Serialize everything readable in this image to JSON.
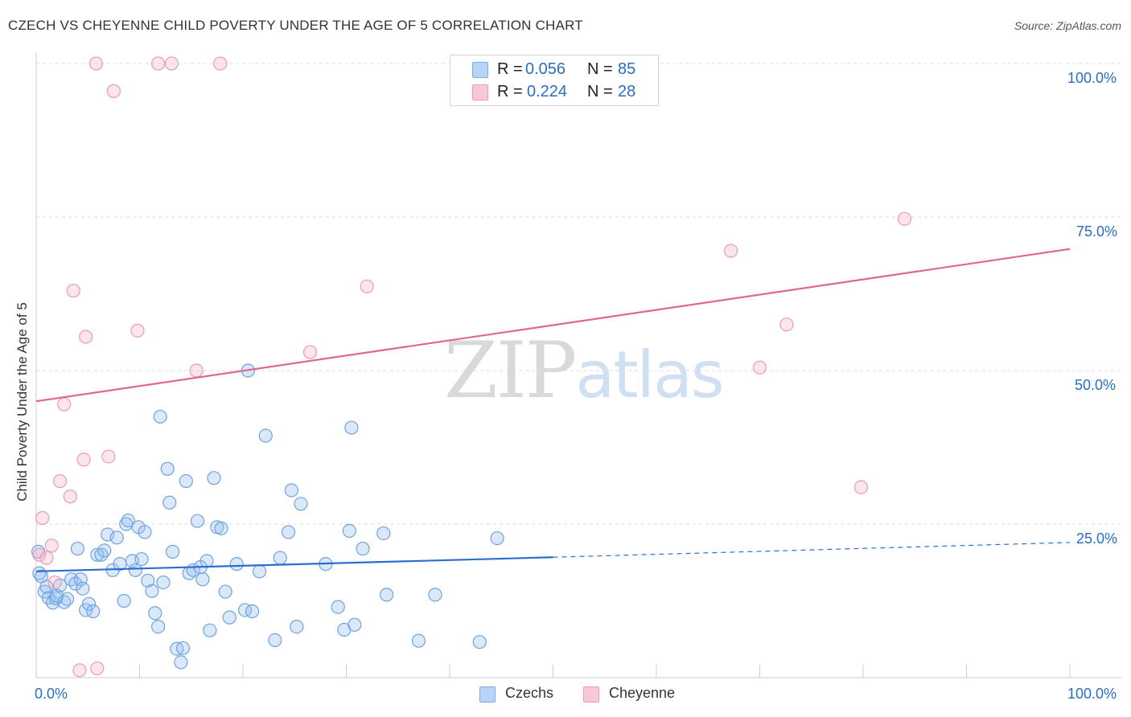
{
  "title": "CZECH VS CHEYENNE CHILD POVERTY UNDER THE AGE OF 5 CORRELATION CHART",
  "source": "Source: ZipAtlas.com",
  "watermark": {
    "part1": "ZIP",
    "part2": "atlas"
  },
  "legend": {
    "rows": [
      {
        "r_label": "R =",
        "r_value": "0.056",
        "n_label": "N =",
        "n_value": "85",
        "swatch_fill": "#b8d4f4",
        "swatch_stroke": "#7aaee6"
      },
      {
        "r_label": "R =",
        "r_value": "0.224",
        "n_label": "N =",
        "n_value": "28",
        "swatch_fill": "#f8c8d6",
        "swatch_stroke": "#ee9ab4"
      }
    ]
  },
  "bottom_legend": [
    {
      "label": "Czechs",
      "fill": "#b8d4f4",
      "stroke": "#7aaee6"
    },
    {
      "label": "Cheyenne",
      "fill": "#f8c8d6",
      "stroke": "#ee9ab4"
    }
  ],
  "colors": {
    "czech_point_fill": "rgba(150,190,240,0.35)",
    "czech_point_stroke": "#6fa3e0",
    "cheyenne_point_fill": "rgba(245,180,200,0.35)",
    "cheyenne_point_stroke": "#ec9ab3",
    "czech_line": "#2a6fcf",
    "cheyenne_line": "#e0678f",
    "grid": "#dddddd",
    "axis": "#cccccc",
    "tick_text": "#2a6ebf"
  },
  "chart_data": {
    "type": "scatter",
    "title": "CZECH VS CHEYENNE CHILD POVERTY UNDER THE AGE OF 5 CORRELATION CHART",
    "xlabel": "",
    "ylabel": "Child Poverty Under the Age of 5",
    "xlim": [
      0,
      100
    ],
    "ylim": [
      0,
      100
    ],
    "x_tick_labels": {
      "left": "0.0%",
      "right": "100.0%"
    },
    "y_tick_labels": [
      "100.0%",
      "75.0%",
      "50.0%",
      "25.0%"
    ],
    "y_ticks": [
      100,
      75,
      50,
      25
    ],
    "grid": true,
    "legend_position": "top-center",
    "series": [
      {
        "name": "Czechs",
        "r": 0.056,
        "n": 85,
        "trend": {
          "x0": 0,
          "y0": 17.3,
          "x1": 50,
          "y1": 19.6,
          "dashed_to_x": 100,
          "dashed_to_y": 22.0
        },
        "points": [
          [
            0.2,
            20.5
          ],
          [
            0.5,
            16.5
          ],
          [
            0.8,
            14.0
          ],
          [
            1.2,
            13.0
          ],
          [
            1.6,
            12.2
          ],
          [
            1.9,
            12.9
          ],
          [
            2.3,
            15.0
          ],
          [
            2.7,
            12.3
          ],
          [
            3.0,
            12.8
          ],
          [
            3.4,
            16.0
          ],
          [
            3.8,
            15.3
          ],
          [
            4.0,
            21.0
          ],
          [
            4.3,
            16.0
          ],
          [
            4.5,
            14.5
          ],
          [
            4.8,
            11.0
          ],
          [
            5.1,
            12.0
          ],
          [
            5.5,
            10.8
          ],
          [
            5.9,
            20.0
          ],
          [
            6.3,
            20.0
          ],
          [
            6.6,
            20.7
          ],
          [
            6.9,
            23.3
          ],
          [
            7.4,
            17.5
          ],
          [
            7.8,
            22.8
          ],
          [
            8.1,
            18.5
          ],
          [
            8.5,
            12.5
          ],
          [
            8.7,
            25.0
          ],
          [
            8.9,
            25.6
          ],
          [
            9.3,
            19.0
          ],
          [
            9.6,
            17.5
          ],
          [
            9.9,
            24.5
          ],
          [
            10.2,
            19.3
          ],
          [
            10.5,
            23.7
          ],
          [
            10.8,
            15.8
          ],
          [
            11.2,
            14.1
          ],
          [
            11.5,
            10.5
          ],
          [
            11.8,
            8.3
          ],
          [
            12.0,
            42.5
          ],
          [
            12.3,
            15.5
          ],
          [
            12.7,
            34.0
          ],
          [
            12.9,
            28.5
          ],
          [
            13.2,
            20.5
          ],
          [
            13.6,
            4.7
          ],
          [
            14.0,
            2.5
          ],
          [
            14.2,
            4.8
          ],
          [
            14.5,
            32.0
          ],
          [
            14.8,
            17.0
          ],
          [
            15.2,
            17.5
          ],
          [
            15.6,
            25.5
          ],
          [
            15.9,
            18.0
          ],
          [
            16.1,
            16.0
          ],
          [
            16.5,
            19.0
          ],
          [
            16.8,
            7.7
          ],
          [
            17.2,
            32.5
          ],
          [
            17.5,
            24.5
          ],
          [
            17.9,
            24.3
          ],
          [
            18.3,
            14.0
          ],
          [
            18.7,
            9.8
          ],
          [
            19.4,
            18.5
          ],
          [
            20.2,
            11.0
          ],
          [
            20.5,
            50.0
          ],
          [
            20.9,
            10.8
          ],
          [
            21.6,
            17.3
          ],
          [
            22.2,
            39.4
          ],
          [
            23.1,
            6.1
          ],
          [
            23.6,
            19.5
          ],
          [
            24.4,
            23.7
          ],
          [
            24.7,
            30.5
          ],
          [
            25.2,
            8.3
          ],
          [
            25.6,
            28.3
          ],
          [
            28.0,
            18.5
          ],
          [
            29.2,
            11.5
          ],
          [
            29.8,
            7.8
          ],
          [
            30.3,
            23.9
          ],
          [
            30.5,
            40.7
          ],
          [
            30.8,
            8.6
          ],
          [
            31.6,
            21.0
          ],
          [
            33.6,
            23.5
          ],
          [
            33.9,
            13.5
          ],
          [
            37.0,
            6.0
          ],
          [
            38.6,
            13.5
          ],
          [
            42.9,
            5.8
          ],
          [
            44.6,
            22.7
          ],
          [
            0.3,
            17.0
          ],
          [
            1.0,
            14.8
          ],
          [
            2.0,
            13.3
          ]
        ]
      },
      {
        "name": "Cheyenne",
        "r": 0.224,
        "n": 28,
        "trend": {
          "x0": 0,
          "y0": 45.0,
          "x1": 100,
          "y1": 69.8
        },
        "points": [
          [
            0.3,
            20.0
          ],
          [
            0.6,
            26.0
          ],
          [
            1.0,
            19.5
          ],
          [
            1.5,
            21.5
          ],
          [
            1.8,
            15.5
          ],
          [
            2.3,
            32.0
          ],
          [
            2.7,
            44.5
          ],
          [
            3.3,
            29.5
          ],
          [
            3.6,
            63.0
          ],
          [
            4.2,
            1.2
          ],
          [
            4.6,
            35.5
          ],
          [
            4.8,
            55.5
          ],
          [
            5.9,
            1.5
          ],
          [
            5.8,
            100.0
          ],
          [
            7.0,
            36.0
          ],
          [
            7.5,
            95.5
          ],
          [
            9.8,
            56.5
          ],
          [
            11.8,
            100.0
          ],
          [
            13.1,
            100.0
          ],
          [
            15.5,
            50.0
          ],
          [
            17.8,
            100.0
          ],
          [
            26.5,
            53.0
          ],
          [
            32.0,
            63.7
          ],
          [
            67.2,
            69.5
          ],
          [
            70.0,
            50.5
          ],
          [
            72.6,
            57.5
          ],
          [
            79.8,
            31.0
          ],
          [
            84.0,
            74.7
          ]
        ]
      }
    ]
  }
}
